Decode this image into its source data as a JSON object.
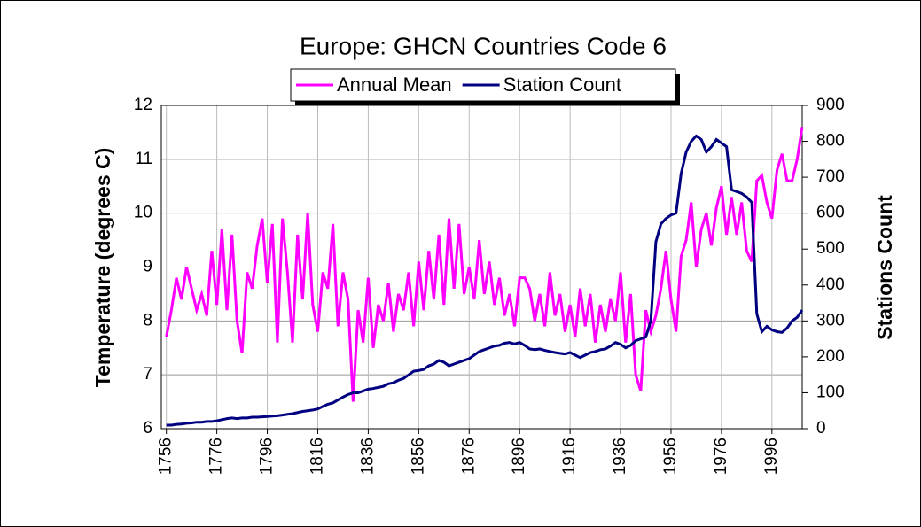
{
  "chart_data": {
    "type": "line",
    "title": "Europe: GHCN Countries Code 6",
    "ylabel": "Temperature (degrees C)",
    "y2label": "Stations Count",
    "x": [
      1756,
      1758,
      1760,
      1762,
      1764,
      1766,
      1768,
      1770,
      1772,
      1774,
      1776,
      1778,
      1780,
      1782,
      1784,
      1786,
      1788,
      1790,
      1792,
      1794,
      1796,
      1798,
      1800,
      1802,
      1804,
      1806,
      1808,
      1810,
      1812,
      1814,
      1816,
      1818,
      1820,
      1822,
      1824,
      1826,
      1828,
      1830,
      1832,
      1834,
      1836,
      1838,
      1840,
      1842,
      1844,
      1846,
      1848,
      1850,
      1852,
      1854,
      1856,
      1858,
      1860,
      1862,
      1864,
      1866,
      1868,
      1870,
      1872,
      1874,
      1876,
      1878,
      1880,
      1882,
      1884,
      1886,
      1888,
      1890,
      1892,
      1894,
      1896,
      1898,
      1900,
      1902,
      1904,
      1906,
      1908,
      1910,
      1912,
      1914,
      1916,
      1918,
      1920,
      1922,
      1924,
      1926,
      1928,
      1930,
      1932,
      1934,
      1936,
      1938,
      1940,
      1942,
      1944,
      1946,
      1948,
      1950,
      1952,
      1954,
      1956,
      1958,
      1960,
      1962,
      1964,
      1966,
      1968,
      1970,
      1972,
      1974,
      1976,
      1978,
      1980,
      1982,
      1984,
      1986,
      1988,
      1990,
      1992,
      1994,
      1996,
      1998,
      2000,
      2002,
      2004,
      2006,
      2008
    ],
    "series": [
      {
        "name": "Annual Mean",
        "color": "#ff00ff",
        "values": [
          7.7,
          8.2,
          8.8,
          8.4,
          9.0,
          8.6,
          8.2,
          8.5,
          8.1,
          9.3,
          8.3,
          9.7,
          8.2,
          9.6,
          8.0,
          7.4,
          8.9,
          8.6,
          9.4,
          9.9,
          8.7,
          9.8,
          7.6,
          9.9,
          8.9,
          7.6,
          9.6,
          8.4,
          10.0,
          8.3,
          7.8,
          8.9,
          8.6,
          9.8,
          7.9,
          8.9,
          8.4,
          6.5,
          8.2,
          7.6,
          8.8,
          7.5,
          8.3,
          8.0,
          8.7,
          7.8,
          8.5,
          8.2,
          8.9,
          7.9,
          9.1,
          8.2,
          9.3,
          8.4,
          9.6,
          8.3,
          9.9,
          8.6,
          9.8,
          8.5,
          9.0,
          8.4,
          9.5,
          8.5,
          9.1,
          8.3,
          8.8,
          8.1,
          8.5,
          7.9,
          8.8,
          8.8,
          8.6,
          8.0,
          8.5,
          7.9,
          8.9,
          8.1,
          8.5,
          7.8,
          8.3,
          7.7,
          8.6,
          7.9,
          8.5,
          7.6,
          8.3,
          7.8,
          8.4,
          8.0,
          8.9,
          7.6,
          8.5,
          7.0,
          6.7,
          8.2,
          7.8,
          8.1,
          8.6,
          9.3,
          8.4,
          7.8,
          9.2,
          9.5,
          10.2,
          9.0,
          9.7,
          10.0,
          9.4,
          10.1,
          10.5,
          9.6,
          10.3,
          9.6,
          10.2,
          9.3,
          9.1,
          10.6,
          10.7,
          10.2,
          9.9,
          10.8,
          11.1,
          10.6,
          10.6,
          11.0,
          11.6
        ]
      },
      {
        "name": "Station Count",
        "color": "#000080",
        "axis": "y2",
        "values": [
          10,
          10,
          12,
          13,
          15,
          16,
          18,
          18,
          20,
          20,
          22,
          25,
          28,
          30,
          28,
          30,
          30,
          32,
          32,
          33,
          34,
          35,
          36,
          38,
          40,
          42,
          45,
          48,
          50,
          52,
          55,
          62,
          68,
          72,
          80,
          88,
          95,
          100,
          100,
          105,
          110,
          112,
          115,
          118,
          125,
          128,
          135,
          140,
          150,
          160,
          162,
          165,
          175,
          180,
          190,
          185,
          175,
          180,
          185,
          190,
          195,
          205,
          215,
          220,
          225,
          230,
          232,
          238,
          240,
          236,
          240,
          232,
          222,
          220,
          222,
          218,
          215,
          212,
          210,
          208,
          212,
          205,
          198,
          205,
          212,
          215,
          220,
          222,
          230,
          240,
          235,
          225,
          232,
          245,
          250,
          255,
          300,
          520,
          570,
          585,
          595,
          600,
          710,
          770,
          800,
          815,
          805,
          770,
          785,
          805,
          795,
          785,
          665,
          660,
          655,
          645,
          630,
          320,
          270,
          285,
          275,
          270,
          268,
          280,
          300,
          310,
          330
        ]
      }
    ],
    "xlim": [
      1754,
      2008
    ],
    "xticks": [
      1756,
      1776,
      1796,
      1816,
      1836,
      1856,
      1876,
      1896,
      1916,
      1936,
      1956,
      1976,
      1996
    ],
    "ylim": [
      6,
      12
    ],
    "yticks": [
      6,
      7,
      8,
      9,
      10,
      11,
      12
    ],
    "y2lim": [
      0,
      900
    ],
    "y2ticks": [
      0,
      100,
      200,
      300,
      400,
      500,
      600,
      700,
      800,
      900
    ],
    "grid": true,
    "legend": "top"
  }
}
